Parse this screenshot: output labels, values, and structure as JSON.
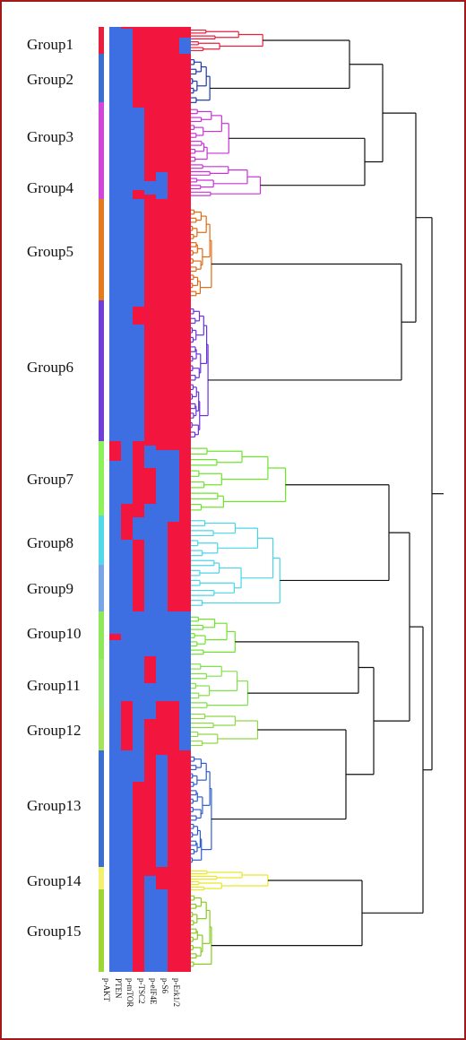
{
  "groups": [
    {
      "label": "Group1",
      "color": "#e8203f"
    },
    {
      "label": "Group2",
      "color": "#3d6fd0"
    },
    {
      "label": "Group3",
      "color": "#d147d8"
    },
    {
      "label": "Group4",
      "color": "#d147d8"
    },
    {
      "label": "Group5",
      "color": "#e57a1f"
    },
    {
      "label": "Group6",
      "color": "#6f3fd6"
    },
    {
      "label": "Group7",
      "color": "#8ef05a"
    },
    {
      "label": "Group8",
      "color": "#52d8e8"
    },
    {
      "label": "Group9",
      "color": "#7aa6e6"
    },
    {
      "label": "Group10",
      "color": "#8ee85a"
    },
    {
      "label": "Group11",
      "color": "#9be870"
    },
    {
      "label": "Group12",
      "color": "#a6e35c"
    },
    {
      "label": "Group13",
      "color": "#3d6fd0"
    },
    {
      "label": "Group14",
      "color": "#f2f070"
    },
    {
      "label": "Group15",
      "color": "#9ed636"
    }
  ],
  "markers": [
    "p-AKT",
    "PTEN",
    "p-mTOR",
    "p-TSC2",
    "p-eIF4E",
    "p-S6",
    "p-Erk1/2"
  ],
  "heatmap_colors": {
    "high": "#f2163e",
    "low": "#3d6fe3"
  }
}
